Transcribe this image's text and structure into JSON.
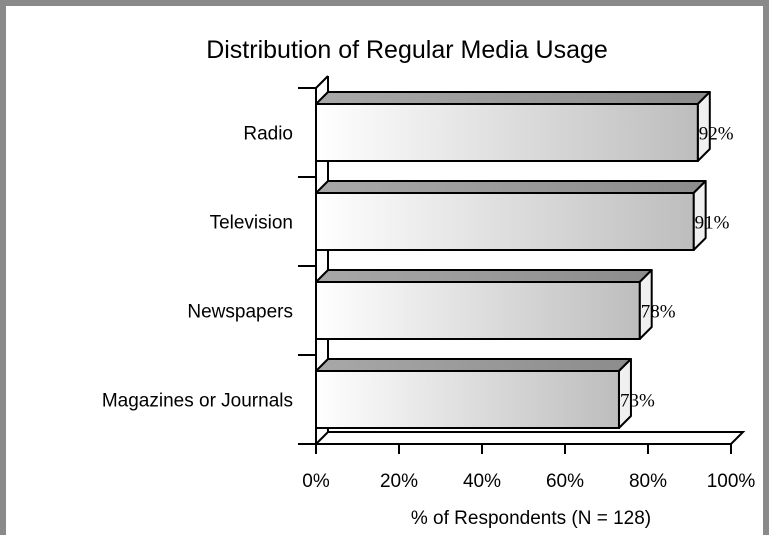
{
  "chart_data": {
    "type": "bar",
    "orientation": "horizontal",
    "title": "Distribution of Regular Media Usage",
    "xlabel": "% of Respondents (N = 128)",
    "ylabel": "",
    "categories": [
      "Radio",
      "Television",
      "Newspapers",
      "Magazines or Journals"
    ],
    "values": [
      92,
      91,
      78,
      73
    ],
    "data_labels": [
      "92%",
      "91%",
      "78%",
      "73%"
    ],
    "xlim": [
      0,
      100
    ],
    "x_ticks": [
      "0%",
      "20%",
      "40%",
      "60%",
      "80%",
      "100%"
    ],
    "grid": false,
    "legend": "none",
    "style": "3d",
    "colors": {
      "bar_light": "#ffffff",
      "bar_dark": "#bdbdbd",
      "frame": "#8a8a8a"
    }
  }
}
